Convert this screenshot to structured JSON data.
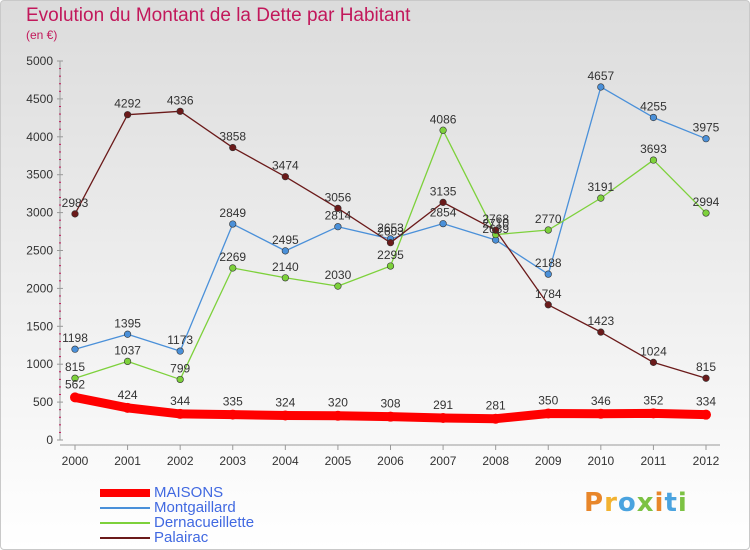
{
  "title": "Evolution du Montant de la Dette par Habitant",
  "subtitle": "(en €)",
  "logo": {
    "text": "Proxiti",
    "colors": [
      "#e8862a",
      "#f2b230",
      "#4aa3df",
      "#7cc243",
      "#e8862a",
      "#4aa3df",
      "#7cc243"
    ]
  },
  "chart_data": {
    "type": "line",
    "x": [
      "2000",
      "2001",
      "2002",
      "2003",
      "2004",
      "2005",
      "2006",
      "2007",
      "2008",
      "2009",
      "2010",
      "2011",
      "2012"
    ],
    "ylim": [
      0,
      5000
    ],
    "yticks": [
      "0",
      "500",
      "1000",
      "1500",
      "2000",
      "2500",
      "3000",
      "3500",
      "4000",
      "4500",
      "5000"
    ],
    "grid": false,
    "legend_position": "bottom-left",
    "series": [
      {
        "name": "MAISONS",
        "color": "#ff0000",
        "values": [
          562,
          424,
          344,
          335,
          324,
          320,
          308,
          291,
          281,
          350,
          346,
          352,
          334
        ]
      },
      {
        "name": "Montgaillard",
        "color": "#4a90d9",
        "values": [
          1198,
          1395,
          1173,
          2849,
          2495,
          2814,
          2653,
          2854,
          2639,
          2188,
          4657,
          4255,
          3975
        ]
      },
      {
        "name": "Dernacueillette",
        "color": "#7dd13b",
        "values": [
          815,
          1037,
          799,
          2269,
          2140,
          2030,
          2295,
          4086,
          2710,
          2770,
          3191,
          3693,
          2994
        ]
      },
      {
        "name": "Palairac",
        "color": "#6b1a1a",
        "values": [
          2983,
          4292,
          4336,
          3858,
          3474,
          3056,
          2603,
          3135,
          2768,
          1784,
          1423,
          1024,
          815
        ]
      }
    ]
  }
}
